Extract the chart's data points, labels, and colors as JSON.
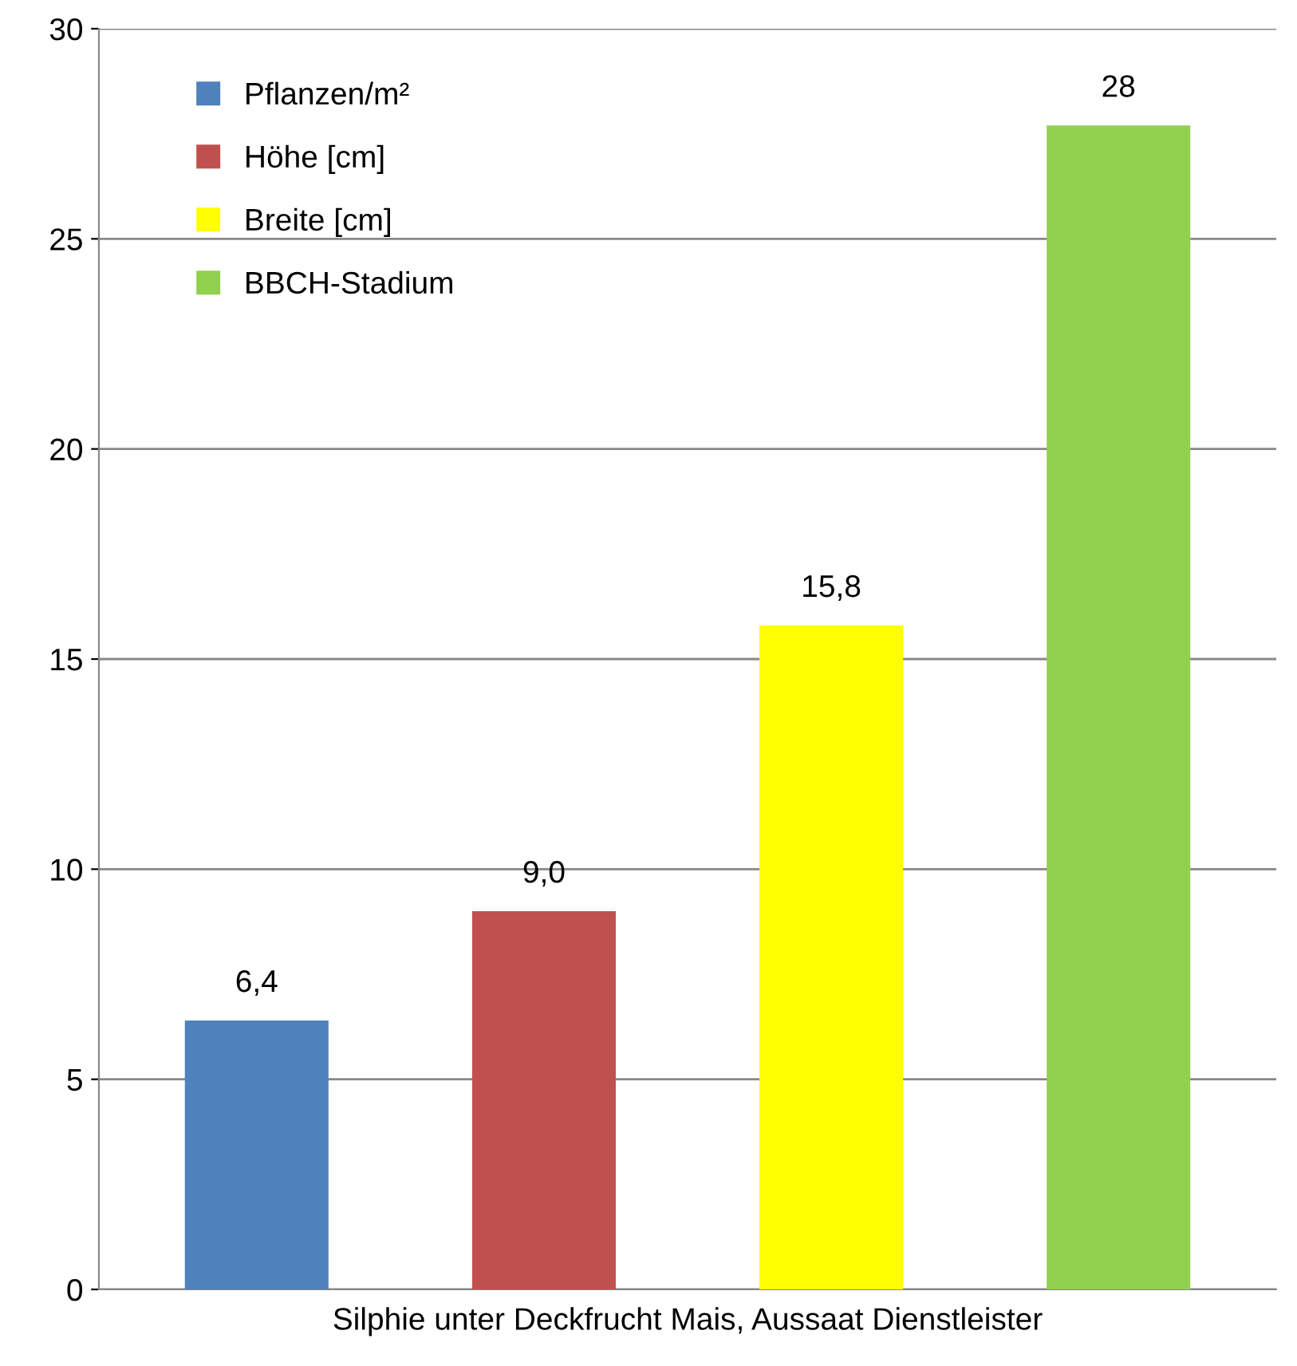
{
  "chart_data": {
    "type": "bar",
    "categories": [
      "Silphie unter Deckfrucht Mais, Aussaat Dienstleister"
    ],
    "series": [
      {
        "name": "Pflanzen/m²",
        "color": "#4f81bd",
        "values": [
          6.4
        ],
        "value_labels": [
          "6,4"
        ]
      },
      {
        "name": "Höhe [cm]",
        "color": "#c0504d",
        "values": [
          9.0
        ],
        "value_labels": [
          "9,0"
        ]
      },
      {
        "name": "Breite [cm]",
        "color": "#ffff00",
        "values": [
          15.8
        ],
        "value_labels": [
          "15,8"
        ]
      },
      {
        "name": "BBCH-Stadium",
        "color": "#92d050",
        "values": [
          27.7
        ],
        "value_labels": [
          "28"
        ]
      }
    ],
    "ylim": [
      0,
      30
    ],
    "yticks": [
      0,
      5,
      10,
      15,
      20,
      25,
      30
    ],
    "grid": "y",
    "legend": "top left"
  }
}
